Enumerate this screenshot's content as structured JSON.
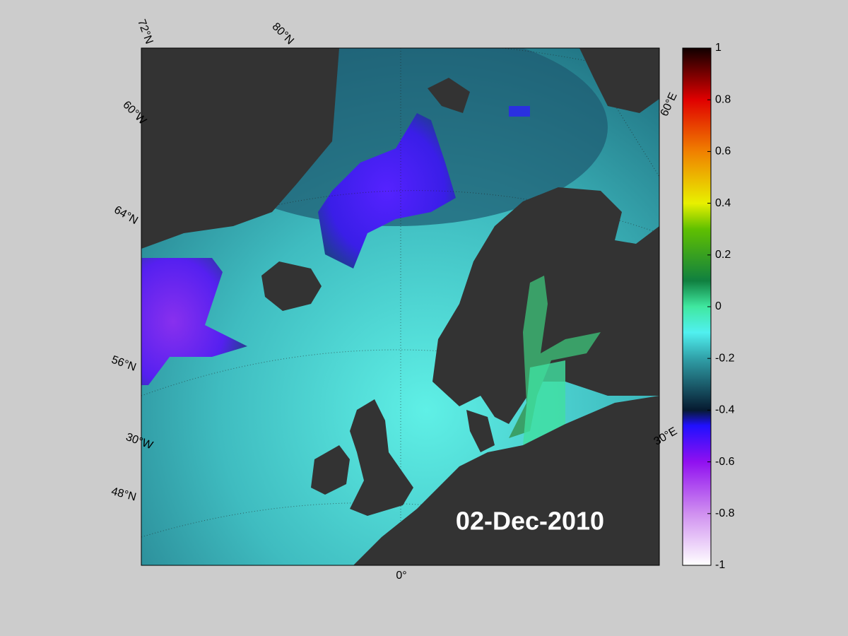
{
  "map": {
    "graticule_labels": [
      "72°N",
      "80°N",
      "60°W",
      "64°N",
      "56°N",
      "30°W",
      "48°N",
      "0°",
      "60°E",
      "30°E"
    ],
    "date_label": "02-Dec-2010",
    "colorbar": {
      "lim": [
        -1,
        1
      ],
      "ticks": [
        1,
        0.8,
        0.6,
        0.4,
        0.2,
        0,
        -0.2,
        -0.4,
        -0.6,
        -0.8,
        -1
      ]
    }
  }
}
